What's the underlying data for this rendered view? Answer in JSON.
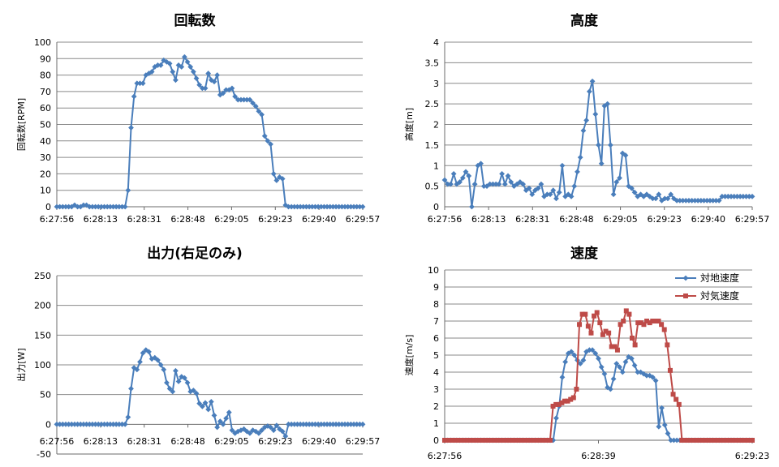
{
  "chart_data": [
    {
      "id": "rpm",
      "type": "line",
      "title": "回転数",
      "ylabel": "回転数[RPM]",
      "ylim": [
        0,
        100
      ],
      "yticks": [
        0,
        10,
        20,
        30,
        40,
        50,
        60,
        70,
        80,
        90,
        100
      ],
      "xticks": [
        "6:27:56",
        "6:28:13",
        "6:28:31",
        "6:28:48",
        "6:29:05",
        "6:29:23",
        "6:29:40",
        "6:29:57"
      ],
      "grid": true,
      "legend": "none",
      "series": [
        {
          "color": "#4a7ebb",
          "marker": "diamond",
          "values": [
            0,
            0,
            0,
            0,
            0,
            0,
            1,
            0,
            0,
            1,
            1,
            0,
            0,
            0,
            0,
            0,
            0,
            0,
            0,
            0,
            0,
            0,
            0,
            0,
            10,
            48,
            67,
            75,
            75,
            75,
            80,
            81,
            82,
            85,
            86,
            86,
            89,
            88,
            87,
            82,
            77,
            86,
            85,
            91,
            88,
            85,
            82,
            78,
            74,
            72,
            72,
            81,
            77,
            76,
            80,
            68,
            69,
            71,
            71,
            72,
            67,
            65,
            65,
            65,
            65,
            65,
            63,
            61,
            58,
            56,
            43,
            40,
            38,
            20,
            16,
            18,
            17,
            1,
            0,
            0,
            0,
            0,
            0,
            0,
            0,
            0,
            0,
            0,
            0,
            0,
            0,
            0,
            0,
            0,
            0,
            0,
            0,
            0,
            0,
            0,
            0,
            0,
            0,
            0
          ]
        }
      ]
    },
    {
      "id": "alt",
      "type": "line",
      "title": "高度",
      "ylabel": "高度[m]",
      "ylim": [
        0,
        4
      ],
      "yticks": [
        0,
        0.5,
        1,
        1.5,
        2,
        2.5,
        3,
        3.5,
        4
      ],
      "xticks": [
        "6:27:56",
        "6:28:13",
        "6:28:31",
        "6:28:48",
        "6:29:05",
        "6:29:23",
        "6:29:40",
        "6:29:57"
      ],
      "grid": true,
      "legend": "none",
      "series": [
        {
          "color": "#4a7ebb",
          "marker": "diamond",
          "values": [
            0.65,
            0.55,
            0.55,
            0.8,
            0.55,
            0.6,
            0.7,
            0.85,
            0.75,
            0.0,
            0.55,
            1.0,
            1.05,
            0.5,
            0.5,
            0.55,
            0.55,
            0.55,
            0.55,
            0.8,
            0.55,
            0.75,
            0.6,
            0.5,
            0.55,
            0.6,
            0.55,
            0.4,
            0.45,
            0.3,
            0.4,
            0.45,
            0.55,
            0.25,
            0.3,
            0.3,
            0.4,
            0.2,
            0.35,
            1.0,
            0.25,
            0.3,
            0.25,
            0.5,
            0.85,
            1.2,
            1.85,
            2.1,
            2.8,
            3.05,
            2.25,
            1.5,
            1.05,
            2.45,
            2.5,
            1.5,
            0.3,
            0.6,
            0.7,
            1.3,
            1.25,
            0.5,
            0.45,
            0.35,
            0.25,
            0.3,
            0.25,
            0.3,
            0.25,
            0.2,
            0.2,
            0.3,
            0.15,
            0.2,
            0.2,
            0.3,
            0.2,
            0.15,
            0.15,
            0.15,
            0.15,
            0.15,
            0.15,
            0.15,
            0.15,
            0.15,
            0.15,
            0.15,
            0.15,
            0.15,
            0.15,
            0.15,
            0.25,
            0.25,
            0.25,
            0.25,
            0.25,
            0.25,
            0.25,
            0.25,
            0.25,
            0.25,
            0.25
          ]
        }
      ]
    },
    {
      "id": "power",
      "type": "line",
      "title": "出力(右足のみ)",
      "ylabel": "出力[W]",
      "ylim": [
        -50,
        250
      ],
      "yticks": [
        -50,
        0,
        50,
        100,
        150,
        200,
        250
      ],
      "xticks": [
        "6:27:56",
        "6:28:13",
        "6:28:31",
        "6:28:48",
        "6:29:05",
        "6:29:23",
        "6:29:40",
        "6:29:57"
      ],
      "grid": true,
      "legend": "none",
      "series": [
        {
          "color": "#4a7ebb",
          "marker": "diamond",
          "values": [
            0,
            0,
            0,
            0,
            0,
            0,
            0,
            0,
            0,
            0,
            0,
            0,
            0,
            0,
            0,
            0,
            0,
            0,
            0,
            0,
            0,
            0,
            0,
            0,
            12,
            60,
            95,
            92,
            105,
            120,
            125,
            122,
            110,
            112,
            108,
            100,
            92,
            70,
            60,
            55,
            90,
            72,
            80,
            78,
            70,
            55,
            57,
            52,
            35,
            30,
            36,
            25,
            38,
            15,
            -5,
            5,
            0,
            10,
            20,
            -10,
            -15,
            -12,
            -10,
            -8,
            -12,
            -15,
            -10,
            -12,
            -15,
            -10,
            -5,
            -3,
            -5,
            -10,
            -2,
            -8,
            -12,
            -20,
            0,
            0,
            0,
            0,
            0,
            0,
            0,
            0,
            0,
            0,
            0,
            0,
            0,
            0,
            0,
            0,
            0,
            0,
            0,
            0,
            0,
            0,
            0,
            0,
            0,
            0
          ]
        }
      ]
    },
    {
      "id": "speed",
      "type": "line",
      "title": "速度",
      "ylabel": "速度[m/s]",
      "ylim": [
        0,
        10
      ],
      "yticks": [
        0,
        1,
        2,
        3,
        4,
        5,
        6,
        7,
        8,
        9,
        10
      ],
      "xticks": [
        "6:27:56",
        "6:28:39",
        "6:29:23"
      ],
      "grid": true,
      "legend": "top-right",
      "series": [
        {
          "name": "対地速度",
          "color": "#4a7ebb",
          "marker": "diamond",
          "values": [
            0,
            0,
            0,
            0,
            0,
            0,
            0,
            0,
            0,
            0,
            0,
            0,
            0,
            0,
            0,
            0,
            0,
            0,
            0,
            0,
            0,
            0,
            0,
            0,
            0,
            0,
            0,
            0,
            0,
            0,
            0,
            0,
            0,
            0,
            0,
            0,
            0,
            1.3,
            2.0,
            3.7,
            4.6,
            5.1,
            5.2,
            5.0,
            4.7,
            4.5,
            4.7,
            5.2,
            5.3,
            5.3,
            5.1,
            4.8,
            4.3,
            3.9,
            3.1,
            3.0,
            3.6,
            4.5,
            4.3,
            4.0,
            4.6,
            4.9,
            4.8,
            4.4,
            4.0,
            4.0,
            3.9,
            3.8,
            3.8,
            3.7,
            3.5,
            0.8,
            1.9,
            0.9,
            0.4,
            0,
            0,
            0,
            0,
            0,
            0,
            0,
            0,
            0,
            0,
            0,
            0,
            0,
            0,
            0,
            0,
            0,
            0,
            0,
            0,
            0,
            0,
            0,
            0,
            0,
            0,
            0,
            0
          ]
        },
        {
          "name": "対気速度",
          "color": "#be4b48",
          "marker": "square",
          "values": [
            0,
            0,
            0,
            0,
            0,
            0,
            0,
            0,
            0,
            0,
            0,
            0,
            0,
            0,
            0,
            0,
            0,
            0,
            0,
            0,
            0,
            0,
            0,
            0,
            0,
            0,
            0,
            0,
            0,
            0,
            0,
            0,
            0,
            0,
            0,
            0,
            0,
            2.0,
            2.1,
            2.1,
            2.2,
            2.3,
            2.3,
            2.4,
            2.5,
            3.0,
            6.8,
            7.4,
            7.4,
            6.7,
            6.3,
            7.3,
            7.5,
            6.9,
            6.2,
            6.4,
            6.3,
            5.5,
            5.5,
            5.3,
            6.8,
            7.0,
            7.6,
            7.4,
            6.0,
            5.6,
            6.9,
            6.9,
            6.8,
            7.0,
            6.9,
            7.0,
            7.0,
            7.0,
            6.8,
            6.5,
            5.6,
            4.1,
            2.7,
            2.4,
            2.1,
            0,
            0,
            0,
            0,
            0,
            0,
            0,
            0,
            0,
            0,
            0,
            0,
            0,
            0,
            0,
            0,
            0,
            0,
            0,
            0,
            0,
            0,
            0,
            0,
            0
          ]
        }
      ]
    }
  ]
}
